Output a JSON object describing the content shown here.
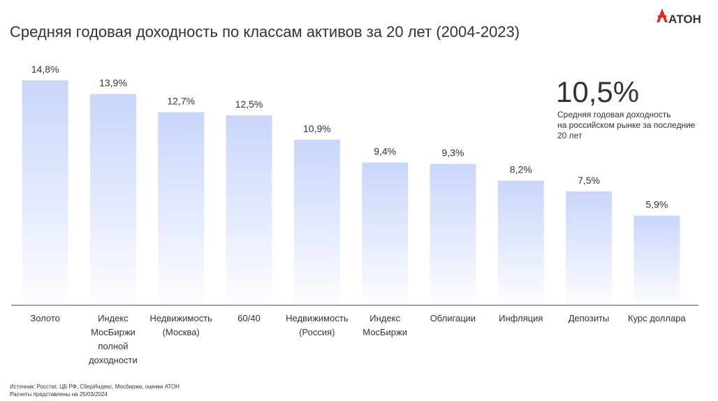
{
  "chart_data": {
    "type": "bar",
    "title": "Средняя годовая доходность по классам активов за 20 лет (2004-2023)",
    "categories": [
      "Золото",
      "Индекс МосБиржи полной доходности",
      "Недвижимость (Москва)",
      "60/40",
      "Недвижимость (Россия)",
      "Индекс МосБиржи",
      "Облигации",
      "Инфляция",
      "Депозиты",
      "Курс доллара"
    ],
    "values": [
      14.8,
      13.9,
      12.7,
      12.5,
      10.9,
      9.4,
      9.3,
      8.2,
      7.5,
      5.9
    ],
    "value_labels": [
      "14,8%",
      "13,9%",
      "12,7%",
      "12,5%",
      "10,9%",
      "9,4%",
      "9,3%",
      "8,2%",
      "7,5%",
      "5,9%"
    ],
    "color": "#c9d6fb",
    "annotation": {
      "value": "10,5%",
      "lines": [
        "Средняя годовая доходность",
        "на российском рынке за последние",
        "20 лет"
      ]
    },
    "logo": "АТОН",
    "source": [
      "Источник: Росстат, ЦБ РФ, СберИндекс, Мосбиржа, оценки АТОН",
      "Расчеты представлены на 25/03/2024"
    ]
  }
}
